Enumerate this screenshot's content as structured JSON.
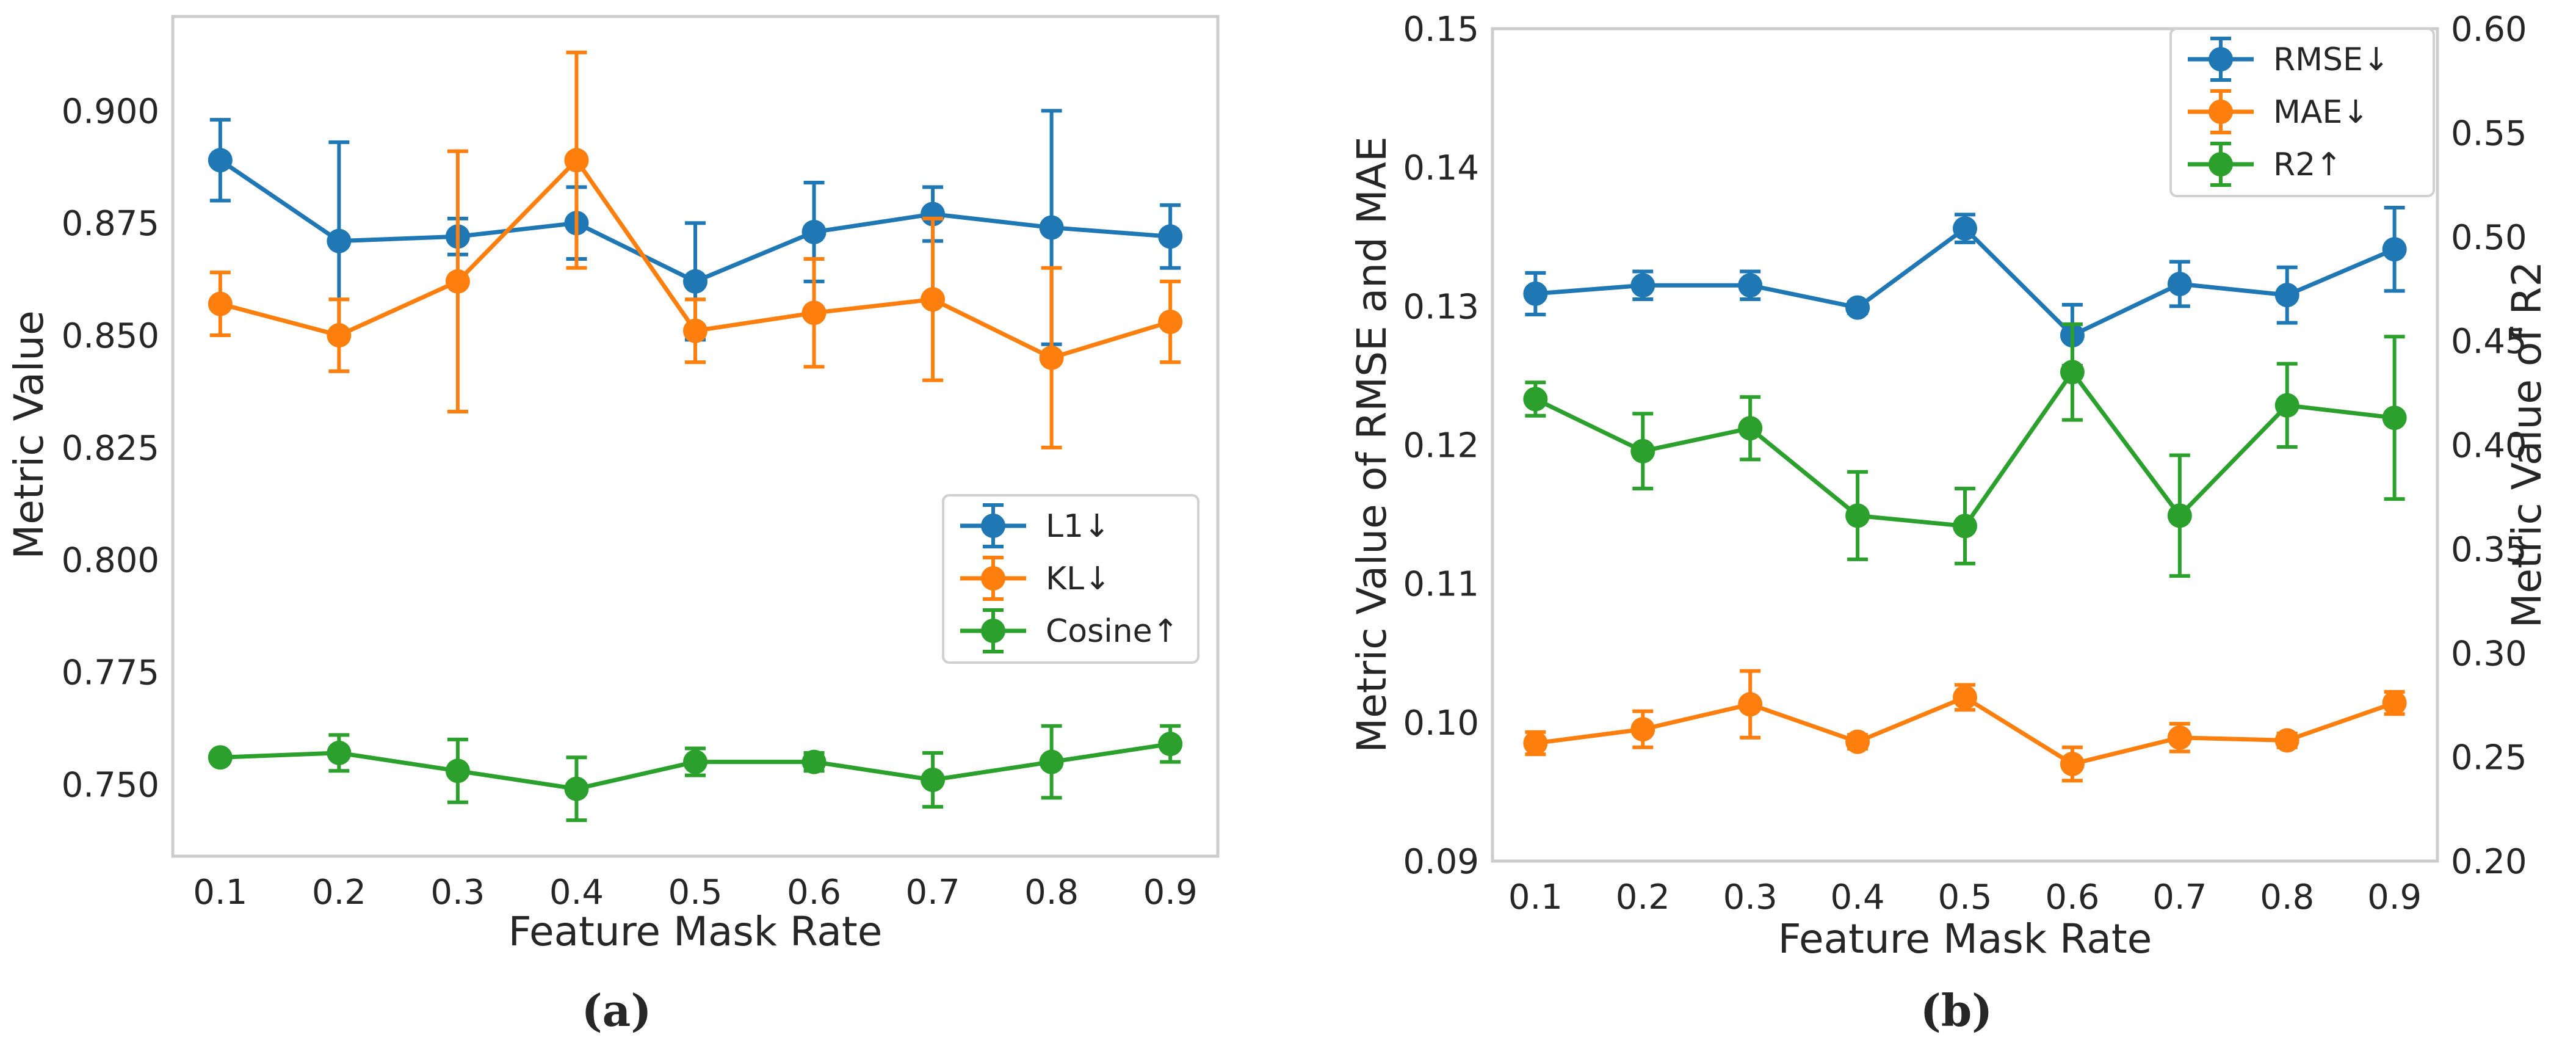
{
  "colors": {
    "blue": "#1f77b4",
    "orange": "#ff7f0e",
    "green": "#2ca02c"
  },
  "chart_data": [
    {
      "type": "line",
      "caption": "(a)",
      "xlabel": "Feature Mask Rate",
      "ylabel": "Metric Value",
      "x": [
        0.1,
        0.2,
        0.3,
        0.4,
        0.5,
        0.6,
        0.7,
        0.8,
        0.9
      ],
      "x_tick_labels": [
        "0.1",
        "0.2",
        "0.3",
        "0.4",
        "0.5",
        "0.6",
        "0.7",
        "0.8",
        "0.9"
      ],
      "xlim": [
        0.06,
        0.94
      ],
      "ylim": [
        0.734,
        0.921
      ],
      "y_ticks": [
        0.75,
        0.775,
        0.8,
        0.825,
        0.85,
        0.875,
        0.9
      ],
      "y_tick_labels": [
        "0.750",
        "0.775",
        "0.800",
        "0.825",
        "0.850",
        "0.875",
        "0.900"
      ],
      "legend_position": "center-right",
      "grid": false,
      "series": [
        {
          "name": "L1↓",
          "color": "blue",
          "axis": "left",
          "values": [
            0.889,
            0.871,
            0.872,
            0.875,
            0.862,
            0.873,
            0.877,
            0.874,
            0.872
          ],
          "errors": [
            0.009,
            0.022,
            0.004,
            0.008,
            0.013,
            0.011,
            0.006,
            0.026,
            0.007
          ]
        },
        {
          "name": "KL↓",
          "color": "orange",
          "axis": "left",
          "values": [
            0.857,
            0.85,
            0.862,
            0.889,
            0.851,
            0.855,
            0.858,
            0.845,
            0.853
          ],
          "errors": [
            0.007,
            0.008,
            0.029,
            0.024,
            0.007,
            0.012,
            0.018,
            0.02,
            0.009
          ]
        },
        {
          "name": "Cosine↑",
          "color": "green",
          "axis": "left",
          "values": [
            0.756,
            0.757,
            0.753,
            0.749,
            0.755,
            0.755,
            0.751,
            0.755,
            0.759
          ],
          "errors": [
            0.001,
            0.004,
            0.007,
            0.007,
            0.003,
            0.002,
            0.006,
            0.008,
            0.004
          ]
        }
      ]
    },
    {
      "type": "line",
      "caption": "(b)",
      "xlabel": "Feature Mask Rate",
      "ylabel": "Metric Value of RMSE and MAE",
      "ylabel_right": "Metric Value of R2",
      "x": [
        0.1,
        0.2,
        0.3,
        0.4,
        0.5,
        0.6,
        0.7,
        0.8,
        0.9
      ],
      "x_tick_labels": [
        "0.1",
        "0.2",
        "0.3",
        "0.4",
        "0.5",
        "0.6",
        "0.7",
        "0.8",
        "0.9"
      ],
      "xlim": [
        0.06,
        0.94
      ],
      "ylim": [
        0.09,
        0.15
      ],
      "y_ticks": [
        0.09,
        0.1,
        0.11,
        0.12,
        0.13,
        0.14,
        0.15
      ],
      "y_tick_labels": [
        "0.09",
        "0.10",
        "0.11",
        "0.12",
        "0.13",
        "0.14",
        "0.15"
      ],
      "ylim_right": [
        0.2,
        0.6
      ],
      "y_ticks_right": [
        0.2,
        0.25,
        0.3,
        0.35,
        0.4,
        0.45,
        0.5,
        0.55,
        0.6
      ],
      "y_tick_labels_right": [
        "0.20",
        "0.25",
        "0.30",
        "0.35",
        "0.40",
        "0.45",
        "0.50",
        "0.55",
        "0.60"
      ],
      "legend_position": "top-right",
      "grid": false,
      "series": [
        {
          "name": "RMSE↓",
          "color": "blue",
          "axis": "left",
          "values": [
            0.1309,
            0.1315,
            0.1315,
            0.1299,
            0.1356,
            0.1279,
            0.1316,
            0.1308,
            0.1341
          ],
          "errors": [
            0.0015,
            0.001,
            0.001,
            0.0004,
            0.001,
            0.0022,
            0.0016,
            0.002,
            0.003
          ]
        },
        {
          "name": "MAE↓",
          "color": "orange",
          "axis": "left",
          "values": [
            0.0985,
            0.0995,
            0.1013,
            0.0986,
            0.1018,
            0.097,
            0.0989,
            0.0987,
            0.1014
          ],
          "errors": [
            0.0008,
            0.0013,
            0.0024,
            0.0005,
            0.0009,
            0.0012,
            0.001,
            0.0005,
            0.0008
          ]
        },
        {
          "name": "R2↑",
          "color": "green",
          "axis": "right",
          "values": [
            0.422,
            0.397,
            0.408,
            0.366,
            0.361,
            0.435,
            0.366,
            0.419,
            0.413
          ],
          "errors": [
            0.008,
            0.018,
            0.015,
            0.021,
            0.018,
            0.023,
            0.029,
            0.02,
            0.039
          ]
        }
      ]
    }
  ]
}
